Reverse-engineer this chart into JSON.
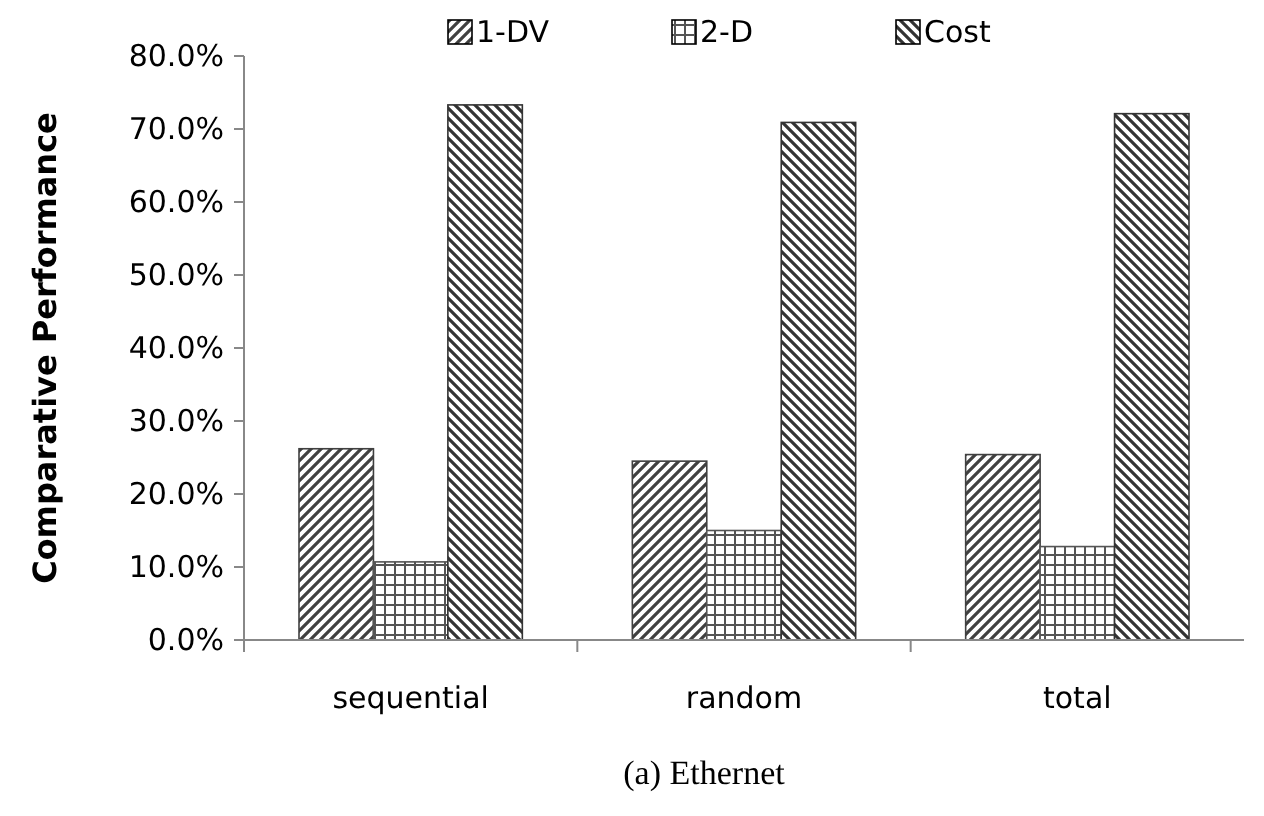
{
  "chart_data": {
    "type": "bar",
    "ylabel": "Comparative Performance",
    "categories": [
      "sequential",
      "random",
      "total"
    ],
    "series": [
      {
        "name": "1-DV",
        "color": "#404040",
        "values": [
          26.2,
          24.5,
          25.4
        ]
      },
      {
        "name": "2-D",
        "color": "#555555",
        "values": [
          10.7,
          15.0,
          12.8
        ]
      },
      {
        "name": "Cost",
        "color": "#333333",
        "values": [
          73.3,
          70.9,
          72.1
        ]
      }
    ],
    "ylim": [
      0,
      80
    ],
    "yticks": [
      {
        "value": 0,
        "label": "0.0%"
      },
      {
        "value": 10,
        "label": "10.0%"
      },
      {
        "value": 20,
        "label": "20.0%"
      },
      {
        "value": 30,
        "label": "30.0%"
      },
      {
        "value": 40,
        "label": "40.0%"
      },
      {
        "value": 50,
        "label": "50.0%"
      },
      {
        "value": 60,
        "label": "60.0%"
      },
      {
        "value": 70,
        "label": "70.0%"
      },
      {
        "value": 80,
        "label": "80.0%"
      }
    ],
    "grid": false,
    "legend": "top",
    "annotations": [
      "(a) Ethernet"
    ]
  }
}
